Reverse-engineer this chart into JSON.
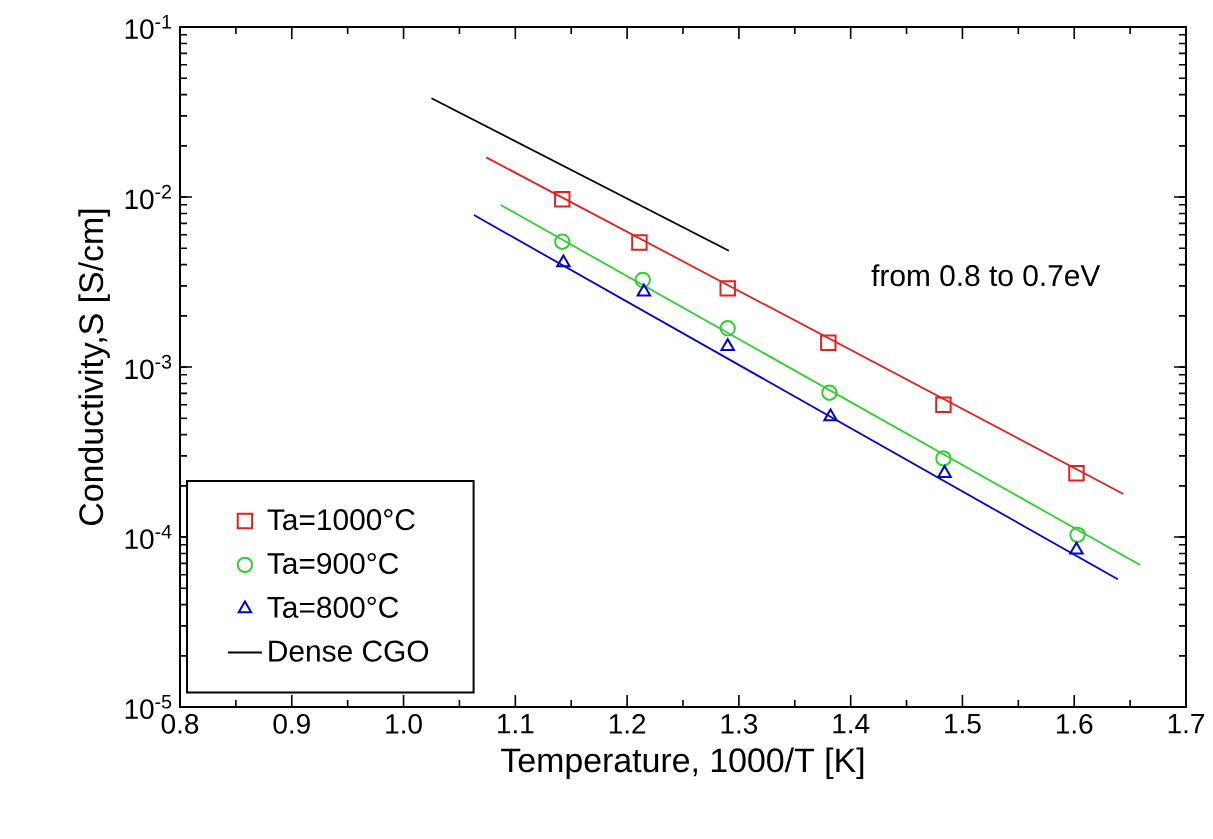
{
  "chart_data": {
    "type": "scatter",
    "xlabel": "Temperature, 1000/T [K]",
    "ylabel": "Conductivity,S [S/cm]",
    "log": "y",
    "xlim": [
      0.8,
      1.7
    ],
    "xticks": [
      0.8,
      0.9,
      {
        "value": 1.0,
        "label": "1.0"
      },
      1.1,
      1.2,
      1.3,
      1.4,
      1.5,
      1.6,
      1.7
    ],
    "ylim": [
      1e-05,
      0.1
    ],
    "yticks": [
      {
        "value": 1e-05,
        "label": "10$^{-5}$"
      },
      {
        "value": 0.0001,
        "label": "10$^{-4}$"
      },
      {
        "value": 0.001,
        "label": "10$^{-3}$"
      },
      {
        "value": 0.01,
        "label": "10$^{-2}$"
      },
      {
        "value": 0.1,
        "label": "10$^{-1}$"
      }
    ],
    "legend": "bottom left",
    "annotations": [
      "from 0.8 to 0.7eV"
    ],
    "series": [
      {
        "name": "Ta=1000°C",
        "marker": "square",
        "color": "#dd2222",
        "x": [
          1.142,
          1.211,
          1.29,
          1.38,
          1.483,
          1.602
        ],
        "values": [
          0.0097,
          0.0054,
          0.0029,
          0.00139,
          0.0006,
          0.000237
        ]
      },
      {
        "name": "Ta=900°C",
        "marker": "circle",
        "color": "#33cc33",
        "x": [
          1.142,
          1.214,
          1.29,
          1.381,
          1.483,
          1.603
        ],
        "values": [
          0.00546,
          0.00325,
          0.00169,
          0.000706,
          0.00029,
          0.000103
        ]
      },
      {
        "name": "Ta=800°C",
        "marker": "triangle",
        "color": "#0000cc",
        "x": [
          1.143,
          1.215,
          1.29,
          1.382,
          1.484,
          1.602
        ],
        "values": [
          0.00411,
          0.00277,
          0.00132,
          0.00051,
          0.000237,
          8.39e-05
        ]
      },
      {
        "name": "Dense CGO",
        "type": "line",
        "marker": "none",
        "color": "#000000",
        "x": [
          1.025,
          1.291
        ],
        "values": [
          0.0381,
          0.00483
        ]
      },
      {
        "type": "line",
        "marker": "none",
        "color": "#dd2222",
        "x": [
          1.074,
          1.644
        ],
        "values": [
          0.0171,
          0.000179
        ]
      },
      {
        "type": "line",
        "marker": "none",
        "color": "#33cc33",
        "x": [
          1.087,
          1.659
        ],
        "values": [
          0.00897,
          6.84e-05
        ]
      },
      {
        "type": "line",
        "marker": "none",
        "color": "#0000cc",
        "x": [
          1.063,
          1.639
        ],
        "values": [
          0.00783,
          5.64e-05
        ]
      }
    ]
  }
}
